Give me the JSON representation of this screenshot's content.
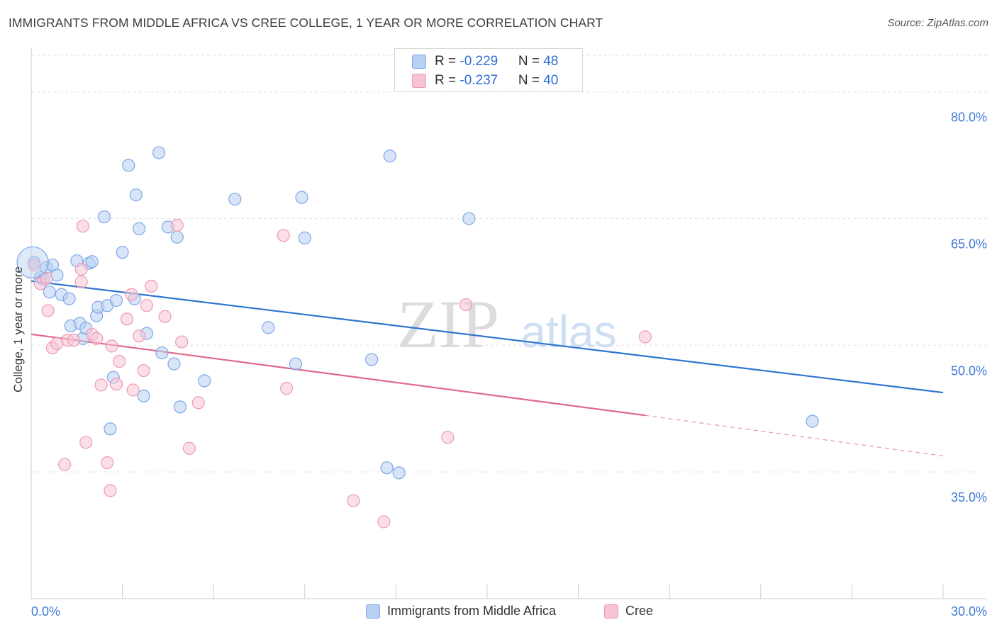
{
  "title": "IMMIGRANTS FROM MIDDLE AFRICA VS CREE COLLEGE, 1 YEAR OR MORE CORRELATION CHART",
  "source": "Source: ZipAtlas.com",
  "watermark": {
    "zip": "ZIP",
    "atlas": "atlas"
  },
  "colors": {
    "blue_fill": "#b8d0f2",
    "blue_stroke": "#7ea8e6",
    "blue_line": "#2f74d0",
    "pink_fill": "#f7c4d4",
    "pink_stroke": "#ee9ab4",
    "pink_line": "#e0678f",
    "grid": "#e3e3e3",
    "tick_label": "#3f7ad6"
  },
  "legend_box": {
    "rows": [
      {
        "series": "blue",
        "r_label": "R = ",
        "r_value": "-0.229",
        "n_label": "N = ",
        "n_value": "48"
      },
      {
        "series": "pink",
        "r_label": "R = ",
        "r_value": "-0.237",
        "n_label": "N = ",
        "n_value": "40"
      }
    ]
  },
  "legend_bottom": [
    {
      "series": "blue",
      "label": "Immigrants from Middle Africa"
    },
    {
      "series": "pink",
      "label": "Cree"
    }
  ],
  "chart_data": {
    "type": "scatter",
    "title": "IMMIGRANTS FROM MIDDLE AFRICA VS CREE COLLEGE, 1 YEAR OR MORE CORRELATION CHART",
    "xlabel": "",
    "ylabel": "College, 1 year or more",
    "xlim": [
      0,
      30
    ],
    "ylim": [
      20,
      85
    ],
    "x_tick_labels": [
      "0.0%",
      "30.0%"
    ],
    "y_ticks": [
      35,
      50,
      65,
      80
    ],
    "y_tick_labels": [
      "35.0%",
      "50.0%",
      "65.0%",
      "80.0%"
    ],
    "grid": true,
    "series": [
      {
        "name": "Immigrants from Middle Africa",
        "color": "blue",
        "r": -0.229,
        "n": 48,
        "trend": {
          "x0": 0,
          "y0": 57.6,
          "x1": 30,
          "y1": 44.4
        },
        "points": [
          [
            0.1,
            59.8
          ],
          [
            0.3,
            58.0
          ],
          [
            0.4,
            57.8
          ],
          [
            0.5,
            59.2
          ],
          [
            0.6,
            56.3
          ],
          [
            0.7,
            59.5
          ],
          [
            0.85,
            58.3
          ],
          [
            1.0,
            56.0
          ],
          [
            1.25,
            55.5
          ],
          [
            1.3,
            52.3
          ],
          [
            1.6,
            52.6
          ],
          [
            1.7,
            50.8
          ],
          [
            1.9,
            59.7
          ],
          [
            1.8,
            52.0
          ],
          [
            2.0,
            59.9
          ],
          [
            2.15,
            53.5
          ],
          [
            2.2,
            54.5
          ],
          [
            2.4,
            65.2
          ],
          [
            2.5,
            54.7
          ],
          [
            2.7,
            46.2
          ],
          [
            2.8,
            55.3
          ],
          [
            3.0,
            61.0
          ],
          [
            3.2,
            71.3
          ],
          [
            3.4,
            55.5
          ],
          [
            3.45,
            67.8
          ],
          [
            3.55,
            63.8
          ],
          [
            3.7,
            44.0
          ],
          [
            3.8,
            51.4
          ],
          [
            4.2,
            72.8
          ],
          [
            4.3,
            49.1
          ],
          [
            4.5,
            64.0
          ],
          [
            4.7,
            47.8
          ],
          [
            4.8,
            62.8
          ],
          [
            4.9,
            42.7
          ],
          [
            5.7,
            45.8
          ],
          [
            6.7,
            67.3
          ],
          [
            7.8,
            52.1
          ],
          [
            8.7,
            47.8
          ],
          [
            8.9,
            67.5
          ],
          [
            9.0,
            62.7
          ],
          [
            11.2,
            48.3
          ],
          [
            11.7,
            35.5
          ],
          [
            11.8,
            72.4
          ],
          [
            12.1,
            34.9
          ],
          [
            14.4,
            65.0
          ],
          [
            25.7,
            41.0
          ],
          [
            2.6,
            40.1
          ],
          [
            1.5,
            60.0
          ]
        ]
      },
      {
        "name": "Cree",
        "color": "pink",
        "r": -0.237,
        "n": 40,
        "trend": {
          "x0": 0,
          "y0": 51.3,
          "x1": 20.2,
          "y1": 41.7,
          "dash_to_x": 30,
          "dash_to_y": 36.9
        },
        "points": [
          [
            0.1,
            59.5
          ],
          [
            0.3,
            57.3
          ],
          [
            0.5,
            57.9
          ],
          [
            0.55,
            54.1
          ],
          [
            0.7,
            49.7
          ],
          [
            0.85,
            50.2
          ],
          [
            1.1,
            35.9
          ],
          [
            1.2,
            50.6
          ],
          [
            1.4,
            50.6
          ],
          [
            1.65,
            59.0
          ],
          [
            1.65,
            57.5
          ],
          [
            1.7,
            64.1
          ],
          [
            1.8,
            38.5
          ],
          [
            2.0,
            51.3
          ],
          [
            2.15,
            50.8
          ],
          [
            2.3,
            45.3
          ],
          [
            2.5,
            36.1
          ],
          [
            2.6,
            32.8
          ],
          [
            2.65,
            49.9
          ],
          [
            2.8,
            45.4
          ],
          [
            2.9,
            48.1
          ],
          [
            3.15,
            53.1
          ],
          [
            3.3,
            56.0
          ],
          [
            3.35,
            44.7
          ],
          [
            3.55,
            51.1
          ],
          [
            3.7,
            47.0
          ],
          [
            3.8,
            54.7
          ],
          [
            3.95,
            57.0
          ],
          [
            4.4,
            53.4
          ],
          [
            4.8,
            64.2
          ],
          [
            4.95,
            50.4
          ],
          [
            5.2,
            37.8
          ],
          [
            5.5,
            43.2
          ],
          [
            8.3,
            63.0
          ],
          [
            8.4,
            44.9
          ],
          [
            10.6,
            31.6
          ],
          [
            11.6,
            29.1
          ],
          [
            13.7,
            39.1
          ],
          [
            14.3,
            54.8
          ],
          [
            20.2,
            51.0
          ]
        ]
      }
    ]
  }
}
